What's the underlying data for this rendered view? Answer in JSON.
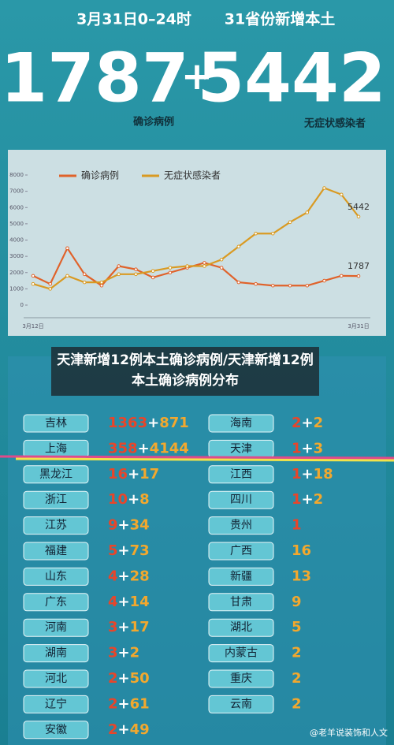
{
  "header": {
    "date": "3月31日0–24时",
    "scope": "31省份新增本土",
    "plus": "+",
    "confirmed_label": "确诊病例",
    "asymptomatic_label": "无症状感染者"
  },
  "chart_data": {
    "type": "line",
    "categories": [
      "3月12日",
      null,
      null,
      null,
      null,
      null,
      null,
      null,
      null,
      null,
      null,
      null,
      null,
      null,
      null,
      null,
      null,
      null,
      null,
      "3月31日"
    ],
    "series": [
      {
        "name": "确诊病例",
        "color": "#e0622a",
        "values": [
          1800,
          1300,
          3500,
          1900,
          1200,
          2400,
          2200,
          1700,
          2000,
          2300,
          2600,
          2300,
          1400,
          1300,
          1200,
          1200,
          1200,
          1500,
          1800,
          1787
        ]
      },
      {
        "name": "无症状感染者",
        "color": "#d99a22",
        "values": [
          1300,
          1000,
          1800,
          1400,
          1400,
          1900,
          1900,
          2100,
          2300,
          2400,
          2400,
          2800,
          3600,
          4400,
          4400,
          5100,
          5700,
          7200,
          6800,
          5442
        ]
      }
    ],
    "ylim": [
      0,
      8000
    ],
    "yticks": [
      0,
      1000,
      2000,
      3000,
      4000,
      5000,
      6000,
      7000,
      8000
    ],
    "grid": false,
    "legend": "top"
  },
  "caption": "天津新增12例本土确诊病例/天津新增12例本土确诊病例分布",
  "table": {
    "plus": "+",
    "left": [
      {
        "province": "吉林",
        "confirmed": 1363,
        "asymptomatic": 871
      },
      {
        "province": "上海",
        "confirmed": 358,
        "asymptomatic": 4144
      },
      {
        "province": "黑龙江",
        "confirmed": 16,
        "asymptomatic": 17
      },
      {
        "province": "浙江",
        "confirmed": 10,
        "asymptomatic": 8
      },
      {
        "province": "江苏",
        "confirmed": 9,
        "asymptomatic": 34
      },
      {
        "province": "福建",
        "confirmed": 5,
        "asymptomatic": 73
      },
      {
        "province": "山东",
        "confirmed": 4,
        "asymptomatic": 28
      },
      {
        "province": "广东",
        "confirmed": 4,
        "asymptomatic": 14
      },
      {
        "province": "河南",
        "confirmed": 3,
        "asymptomatic": 17
      },
      {
        "province": "湖南",
        "confirmed": 3,
        "asymptomatic": 2
      },
      {
        "province": "河北",
        "confirmed": 2,
        "asymptomatic": 50
      },
      {
        "province": "辽宁",
        "confirmed": 2,
        "asymptomatic": 61
      },
      {
        "province": "安徽",
        "confirmed": 2,
        "asymptomatic": 49
      }
    ],
    "right": [
      {
        "province": "海南",
        "confirmed": 2,
        "asymptomatic": 2
      },
      {
        "province": "天津",
        "confirmed": 1,
        "asymptomatic": 3
      },
      {
        "province": "江西",
        "confirmed": 1,
        "asymptomatic": 18
      },
      {
        "province": "四川",
        "confirmed": 1,
        "asymptomatic": 2
      },
      {
        "province": "贵州",
        "confirmed": 1
      },
      {
        "province": "广西",
        "asymptomatic": 16
      },
      {
        "province": "新疆",
        "asymptomatic": 13
      },
      {
        "province": "甘肃",
        "asymptomatic": 9
      },
      {
        "province": "湖北",
        "asymptomatic": 5
      },
      {
        "province": "内蒙古",
        "asymptomatic": 2
      },
      {
        "province": "重庆",
        "asymptomatic": 2
      },
      {
        "province": "云南",
        "asymptomatic": 2
      }
    ]
  },
  "watermark": "@老羊说装饰和人文"
}
